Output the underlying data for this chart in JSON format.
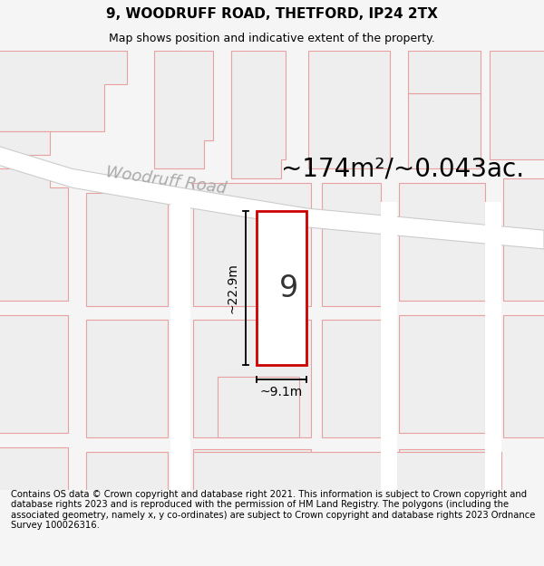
{
  "title": "9, WOODRUFF ROAD, THETFORD, IP24 2TX",
  "subtitle": "Map shows position and indicative extent of the property.",
  "footer": "Contains OS data © Crown copyright and database right 2021. This information is subject to Crown copyright and database rights 2023 and is reproduced with the permission of HM Land Registry. The polygons (including the associated geometry, namely x, y co-ordinates) are subject to Crown copyright and database rights 2023 Ordnance Survey 100026316.",
  "area_text": "~174m²/~0.043ac.",
  "label_9": "9",
  "dim_width": "~9.1m",
  "dim_height": "~22.9m",
  "road_label": "Woodruff Road",
  "map_bg": "#f7f7f7",
  "plot_border": "#cc0000",
  "building_fill": "#eeeeee",
  "building_stroke": "#e8a0a0",
  "road_fill": "#ffffff",
  "road_outline": "#bbbbbb",
  "title_fontsize": 11,
  "subtitle_fontsize": 9,
  "footer_fontsize": 7.2,
  "area_fontsize": 20,
  "dim_fontsize": 10,
  "road_label_fontsize": 13,
  "label_9_fontsize": 24
}
